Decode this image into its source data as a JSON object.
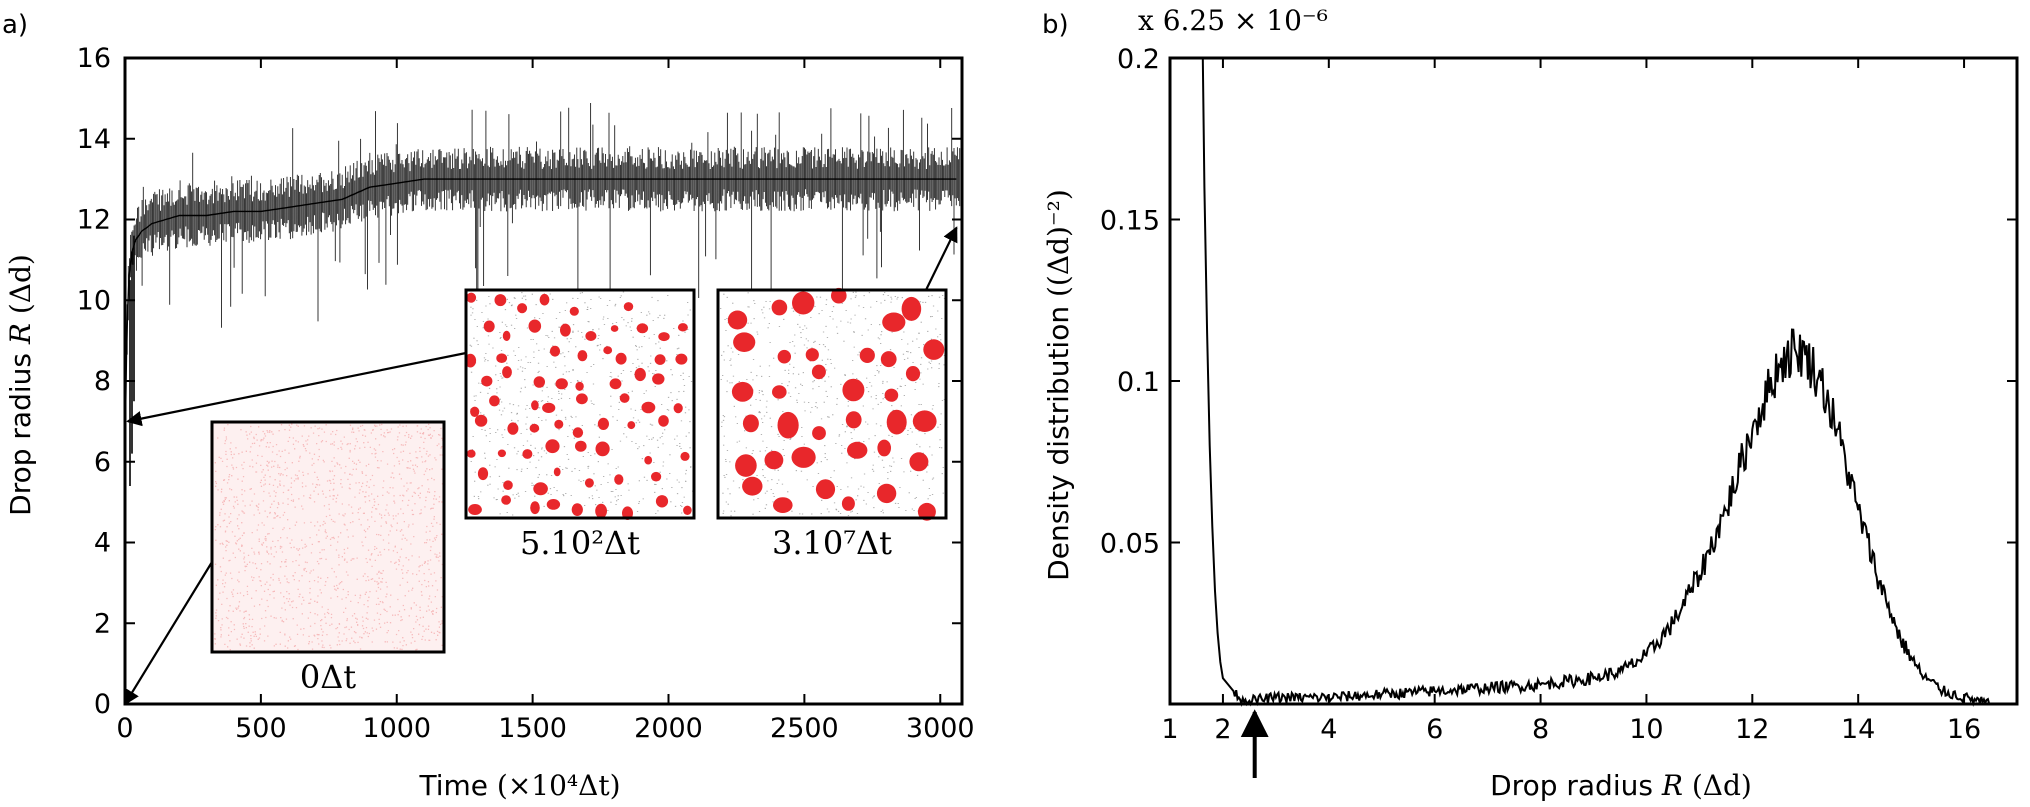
{
  "chart_data": [
    {
      "panel": "a)",
      "type": "line",
      "xlabel": "Time",
      "xlabel_unit": "(×10⁴Δt)",
      "ylabel": "Drop radius",
      "ylabel_var": "R",
      "ylabel_unit": "(Δd)",
      "xlim": [
        0,
        3080
      ],
      "ylim": [
        0,
        16
      ],
      "xticks": [
        0,
        500,
        1000,
        1500,
        2000,
        2500,
        3000
      ],
      "xtick_labels": [
        "0",
        "500",
        "1000",
        "1500",
        "2000",
        "2500",
        "3000"
      ],
      "yticks": [
        0,
        2,
        4,
        6,
        8,
        10,
        12,
        14,
        16
      ],
      "grid": false,
      "color": "#000000",
      "series": [
        {
          "x": [
            0,
            3,
            6,
            10,
            15,
            25,
            40,
            60,
            80,
            100,
            150,
            200,
            300,
            400,
            500,
            600,
            700,
            800,
            900,
            1000,
            1100,
            1200,
            1300,
            1400,
            1500,
            1600,
            1700,
            1800,
            1900,
            2000,
            2100,
            2200,
            2300,
            2400,
            2500,
            2600,
            2700,
            2800,
            2900,
            3000,
            3060
          ],
          "y": [
            6.5,
            7.5,
            8.8,
            9.8,
            10.6,
            11.2,
            11.5,
            11.7,
            11.8,
            11.9,
            12.0,
            12.1,
            12.1,
            12.2,
            12.2,
            12.3,
            12.4,
            12.5,
            12.8,
            12.9,
            13.0,
            13.0,
            13.0,
            13.0,
            13.0,
            13.0,
            13.0,
            13.0,
            13.0,
            13.0,
            13.0,
            13.0,
            13.0,
            13.0,
            13.0,
            13.0,
            13.0,
            13.0,
            13.0,
            13.0,
            13.0
          ]
        }
      ],
      "insets": [
        {
          "label": "0Δt",
          "points_to": [
            0,
            0
          ],
          "drops": false
        },
        {
          "label": "5.10²Δt",
          "points_to": [
            10,
            7
          ],
          "drops": "many-small"
        },
        {
          "label": "3.10⁷Δt",
          "points_to": [
            3060,
            11.8
          ],
          "drops": "few-large"
        }
      ],
      "inset_color": "#e8272b"
    },
    {
      "panel": "b)",
      "type": "line",
      "scale_label": "x 6.25 × 10⁻⁶",
      "xlabel": "Drop radius",
      "xlabel_var": "R",
      "xlabel_unit": "(Δd)",
      "ylabel": "Density distribution",
      "ylabel_unit": "((Δd)⁻²)",
      "xlim": [
        1,
        17
      ],
      "ylim": [
        0,
        0.2
      ],
      "xticks": [
        1,
        2,
        4,
        6,
        8,
        10,
        12,
        14,
        16
      ],
      "yticks": [
        0.05,
        0.1,
        0.15,
        0.2
      ],
      "ytick_labels": [
        "0.05",
        "0.1",
        "0.15",
        "0.2"
      ],
      "grid": false,
      "arrow_at_x": 2.6,
      "series": [
        {
          "x": [
            1.62,
            1.65,
            1.7,
            1.75,
            1.8,
            1.85,
            1.9,
            1.95,
            2.0,
            2.1,
            2.2,
            2.3,
            2.5,
            3,
            4,
            5,
            6,
            7,
            8,
            9,
            9.5,
            10,
            10.5,
            11,
            11.5,
            12,
            12.5,
            12.8,
            13,
            13.3,
            13.6,
            14,
            14.4,
            14.8,
            15.2,
            15.6,
            16,
            16.5
          ],
          "y": [
            0.2,
            0.16,
            0.115,
            0.08,
            0.055,
            0.035,
            0.022,
            0.013,
            0.008,
            0.006,
            0.004,
            0.002,
            0.001,
            0.002,
            0.002,
            0.003,
            0.004,
            0.005,
            0.006,
            0.008,
            0.01,
            0.015,
            0.025,
            0.04,
            0.06,
            0.085,
            0.105,
            0.11,
            0.108,
            0.1,
            0.085,
            0.06,
            0.038,
            0.02,
            0.009,
            0.004,
            0.002,
            0.0
          ]
        }
      ]
    }
  ]
}
